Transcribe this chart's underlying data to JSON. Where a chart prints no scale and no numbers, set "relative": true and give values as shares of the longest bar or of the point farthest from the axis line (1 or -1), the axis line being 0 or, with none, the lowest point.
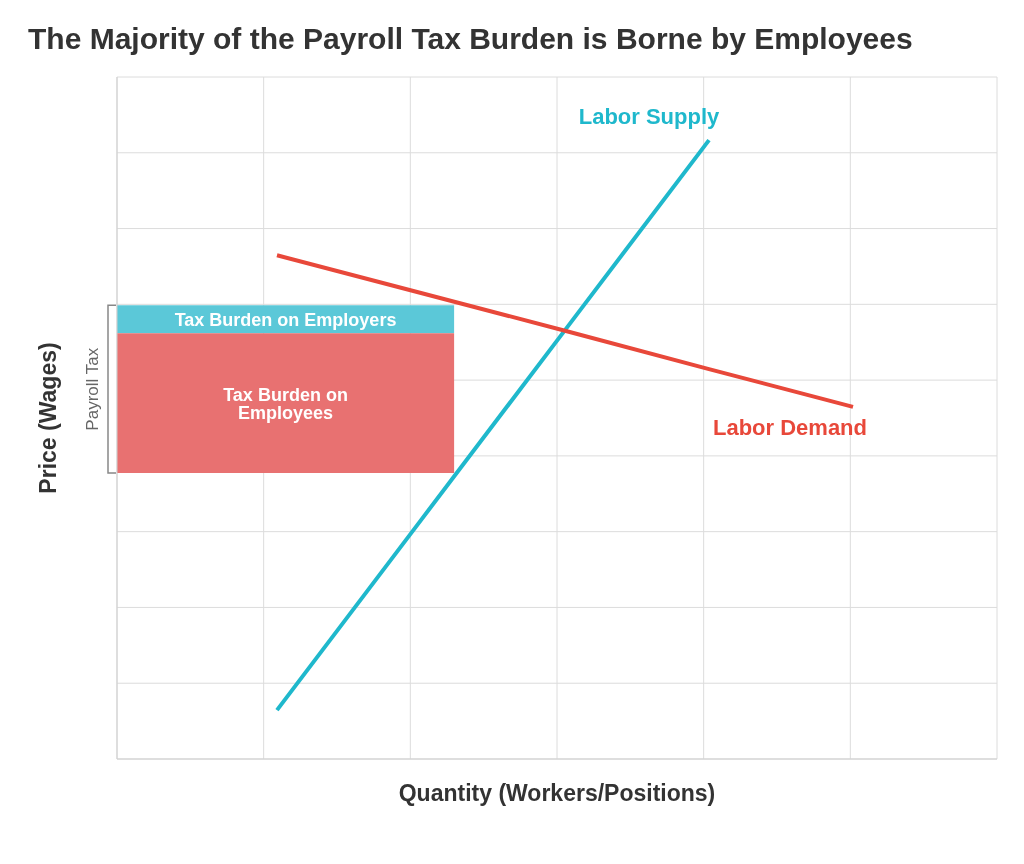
{
  "chart_data": {
    "type": "line",
    "title": "The Majority of the Payroll Tax Burden is Borne by Employees",
    "xlabel": "Quantity (Workers/Positions)",
    "ylabel": "Price (Wages)",
    "relative": true,
    "grid": true,
    "categories": [
      null,
      null,
      null,
      null,
      null
    ],
    "series": [
      {
        "name": "Labor Supply",
        "color": "#1fb8cc",
        "values": [
          0.079,
          0.386,
          0.693,
          1,
          null
        ]
      },
      {
        "name": "Labor Demand",
        "color": "#e8483a",
        "values": [
          0.814,
          0.753,
          0.692,
          0.63,
          0.569
        ]
      }
    ],
    "bands": [
      {
        "axis": "y",
        "from": 0.688,
        "to": 0.733,
        "label": "Tax Burden on Employers",
        "color": "#5bc8d8"
      },
      {
        "axis": "y",
        "from": 0.462,
        "to": 0.688,
        "label": "Tax Burden on Employees",
        "color": "#e87171"
      }
    ],
    "annotations": [
      "Payroll Tax"
    ]
  }
}
